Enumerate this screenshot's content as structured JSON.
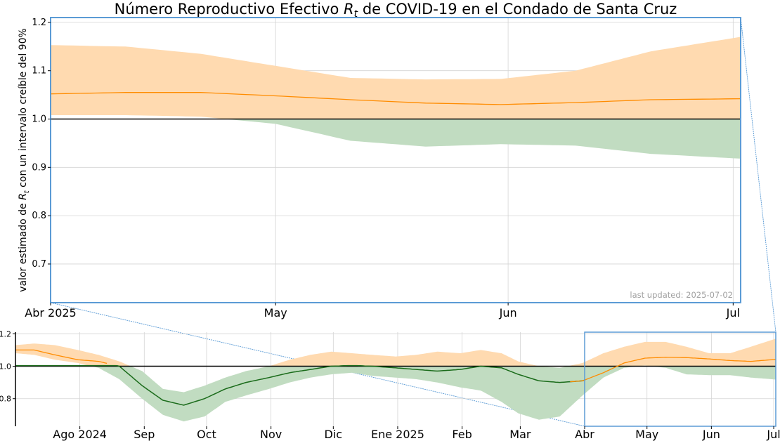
{
  "figure": {
    "title_pre": "Número Reproductivo Efectivo ",
    "title_var": "R",
    "title_sub": "t",
    "title_post": " de COVID-19 en el Condado de Santa Cruz",
    "ylabel_pre": "valor estimado de ",
    "ylabel_var": "R",
    "ylabel_sub": "t",
    "ylabel_post": " con un intervalo creíble del 90%",
    "last_updated": "last updated: 2025-07-02"
  },
  "colors": {
    "recent_line": "#ff8c00",
    "recent_band": "#ffdab0",
    "history_line": "#1a6b1a",
    "below_one": "#c1dcc1",
    "reference_line": "#000000",
    "grid": "#d4d4d4",
    "highlight_box": "#5b9bd5"
  },
  "chart_data": [
    {
      "type": "area",
      "name": "main",
      "x_start": "2025-04-01",
      "x_end": "2025-07-02",
      "ylim": [
        0.62,
        1.21
      ],
      "yticks": [
        "0.7",
        "0.8",
        "0.9",
        "1.0",
        "1.1",
        "1.2"
      ],
      "ytick_values": [
        0.7,
        0.8,
        0.9,
        1.0,
        1.1,
        1.2
      ],
      "xticks": [
        {
          "date": "2025-04-01",
          "label": "Abr 2025"
        },
        {
          "date": "2025-05-01",
          "label": "May"
        },
        {
          "date": "2025-06-01",
          "label": "Jun"
        },
        {
          "date": "2025-07-01",
          "label": "Jul"
        }
      ],
      "reference_value": 1.0,
      "grid": true,
      "series": [
        {
          "x": [
            "2025-04-01",
            "2025-04-11",
            "2025-04-21",
            "2025-05-01",
            "2025-05-11",
            "2025-05-21",
            "2025-05-31",
            "2025-06-10",
            "2025-06-20",
            "2025-07-02"
          ],
          "median": [
            1.052,
            1.055,
            1.055,
            1.048,
            1.04,
            1.033,
            1.03,
            1.034,
            1.04,
            1.042
          ],
          "upper": [
            1.153,
            1.15,
            1.135,
            1.11,
            1.085,
            1.082,
            1.083,
            1.1,
            1.14,
            1.17
          ],
          "lower": [
            1.008,
            1.008,
            1.005,
            0.99,
            0.955,
            0.943,
            0.948,
            0.945,
            0.928,
            0.918
          ]
        }
      ]
    },
    {
      "type": "area",
      "name": "overview",
      "x_start": "2024-07-01",
      "x_end": "2025-07-02",
      "ylim": [
        0.63,
        1.21
      ],
      "yticks": [
        "0.8",
        "1.0",
        "1.2"
      ],
      "ytick_values": [
        0.8,
        1.0,
        1.2
      ],
      "xticks": [
        {
          "date": "2024-08-01",
          "label": "Ago 2024"
        },
        {
          "date": "2024-09-01",
          "label": "Sep"
        },
        {
          "date": "2024-10-01",
          "label": "Oct"
        },
        {
          "date": "2024-11-01",
          "label": "Nov"
        },
        {
          "date": "2024-12-01",
          "label": "Dic"
        },
        {
          "date": "2025-01-01",
          "label": "Ene 2025"
        },
        {
          "date": "2025-02-01",
          "label": "Feb"
        },
        {
          "date": "2025-03-01",
          "label": "Mar"
        },
        {
          "date": "2025-04-01",
          "label": "Abr"
        },
        {
          "date": "2025-05-01",
          "label": "May"
        },
        {
          "date": "2025-06-01",
          "label": "Jun"
        },
        {
          "date": "2025-07-01",
          "label": "Jul"
        }
      ],
      "reference_value": 1.0,
      "grid": true,
      "highlight_range": [
        "2025-04-01",
        "2025-07-02"
      ],
      "series": [
        {
          "x": [
            "2024-07-01",
            "2024-07-10",
            "2024-07-20",
            "2024-07-31",
            "2024-08-10",
            "2024-08-20",
            "2024-08-31",
            "2024-09-10",
            "2024-09-20",
            "2024-09-30",
            "2024-10-10",
            "2024-10-20",
            "2024-10-31",
            "2024-11-10",
            "2024-11-20",
            "2024-11-30",
            "2024-12-10",
            "2024-12-20",
            "2024-12-31",
            "2025-01-10",
            "2025-01-20",
            "2025-01-31",
            "2025-02-10",
            "2025-02-20",
            "2025-02-28",
            "2025-03-10",
            "2025-03-20",
            "2025-03-31",
            "2025-04-10",
            "2025-04-20",
            "2025-04-30",
            "2025-05-10",
            "2025-05-20",
            "2025-05-31",
            "2025-06-10",
            "2025-06-20",
            "2025-07-02"
          ],
          "median": [
            1.1,
            1.1,
            1.07,
            1.04,
            1.03,
            1.0,
            0.88,
            0.79,
            0.76,
            0.8,
            0.86,
            0.9,
            0.93,
            0.96,
            0.98,
            1.0,
            1.005,
            1.0,
            0.99,
            0.98,
            0.97,
            0.98,
            1.0,
            0.99,
            0.95,
            0.91,
            0.9,
            0.91,
            0.96,
            1.02,
            1.05,
            1.055,
            1.053,
            1.045,
            1.035,
            1.03,
            1.042
          ],
          "upper": [
            1.13,
            1.14,
            1.13,
            1.1,
            1.07,
            1.03,
            0.97,
            0.86,
            0.84,
            0.88,
            0.93,
            0.97,
            1.0,
            1.04,
            1.07,
            1.09,
            1.08,
            1.07,
            1.06,
            1.07,
            1.09,
            1.08,
            1.1,
            1.08,
            1.03,
            1.0,
            0.99,
            1.02,
            1.08,
            1.12,
            1.15,
            1.15,
            1.12,
            1.08,
            1.08,
            1.12,
            1.17
          ],
          "lower": [
            1.08,
            1.07,
            1.04,
            1.02,
            0.99,
            0.92,
            0.8,
            0.7,
            0.66,
            0.69,
            0.78,
            0.82,
            0.86,
            0.9,
            0.93,
            0.95,
            0.96,
            0.94,
            0.93,
            0.92,
            0.9,
            0.87,
            0.85,
            0.78,
            0.71,
            0.67,
            0.69,
            0.82,
            0.93,
            0.99,
            1.005,
            0.99,
            0.95,
            0.945,
            0.945,
            0.93,
            0.918
          ]
        }
      ]
    }
  ]
}
